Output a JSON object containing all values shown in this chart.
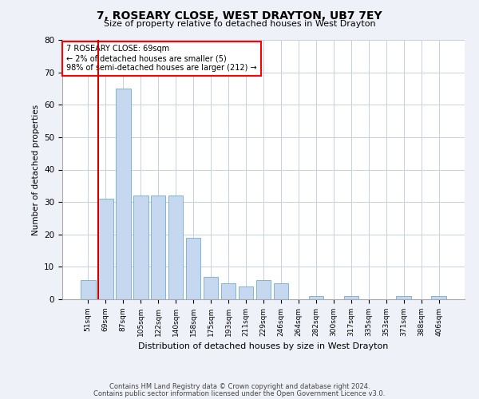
{
  "title": "7, ROSEARY CLOSE, WEST DRAYTON, UB7 7EY",
  "subtitle": "Size of property relative to detached houses in West Drayton",
  "xlabel": "Distribution of detached houses by size in West Drayton",
  "ylabel": "Number of detached properties",
  "categories": [
    "51sqm",
    "69sqm",
    "87sqm",
    "105sqm",
    "122sqm",
    "140sqm",
    "158sqm",
    "175sqm",
    "193sqm",
    "211sqm",
    "229sqm",
    "246sqm",
    "264sqm",
    "282sqm",
    "300sqm",
    "317sqm",
    "335sqm",
    "353sqm",
    "371sqm",
    "388sqm",
    "406sqm"
  ],
  "values": [
    6,
    31,
    65,
    32,
    32,
    32,
    19,
    7,
    5,
    4,
    6,
    5,
    0,
    1,
    0,
    1,
    0,
    0,
    1,
    0,
    1
  ],
  "bar_color": "#c5d8f0",
  "bar_edge_color": "#6baed6",
  "highlight_index": 1,
  "highlight_line_color": "#cc0000",
  "ylim": [
    0,
    80
  ],
  "yticks": [
    0,
    10,
    20,
    30,
    40,
    50,
    60,
    70,
    80
  ],
  "annotation_box_text": "7 ROSEARY CLOSE: 69sqm\n← 2% of detached houses are smaller (5)\n98% of semi-detached houses are larger (212) →",
  "footer1": "Contains HM Land Registry data © Crown copyright and database right 2024.",
  "footer2": "Contains public sector information licensed under the Open Government Licence v3.0.",
  "bg_color": "#eef2f8",
  "plot_bg_color": "#ffffff",
  "grid_color": "#c8d0dc"
}
